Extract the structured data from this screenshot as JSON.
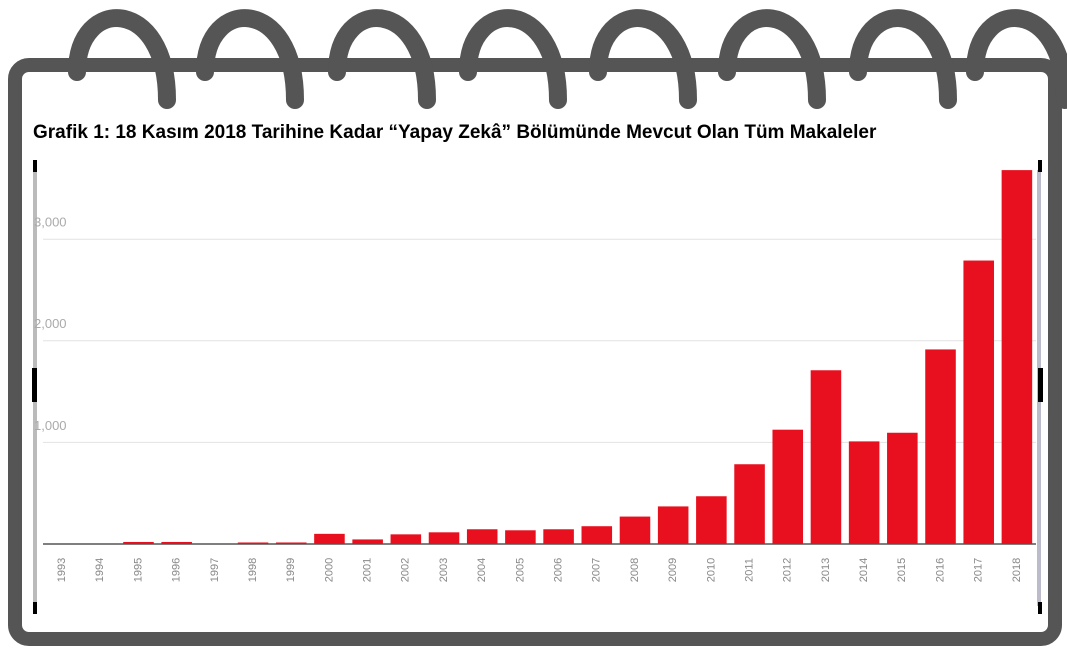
{
  "chart_data": {
    "type": "bar",
    "title": "Grafik 1: 18 Kasım 2018 Tarihine Kadar “Yapay Zekâ” Bölümünde Mevcut Olan Tüm Makaleler",
    "categories": [
      "1993",
      "1994",
      "1995",
      "1996",
      "1997",
      "1998",
      "1999",
      "2000",
      "2001",
      "2002",
      "2003",
      "2004",
      "2005",
      "2006",
      "2007",
      "2008",
      "2009",
      "2010",
      "2011",
      "2012",
      "2013",
      "2014",
      "2015",
      "2016",
      "2017",
      "2018"
    ],
    "values": [
      0,
      0,
      20,
      20,
      0,
      15,
      15,
      100,
      45,
      95,
      115,
      145,
      135,
      145,
      175,
      270,
      370,
      470,
      785,
      1125,
      1710,
      1010,
      1095,
      1915,
      2790,
      3680
    ],
    "color": "#e8101e",
    "ylim": [
      0,
      3750
    ],
    "yticks": [
      {
        "value": 1000,
        "label": "1,000"
      },
      {
        "value": 2000,
        "label": "2,000"
      },
      {
        "value": 3000,
        "label": "3,000"
      }
    ],
    "grid": true
  }
}
